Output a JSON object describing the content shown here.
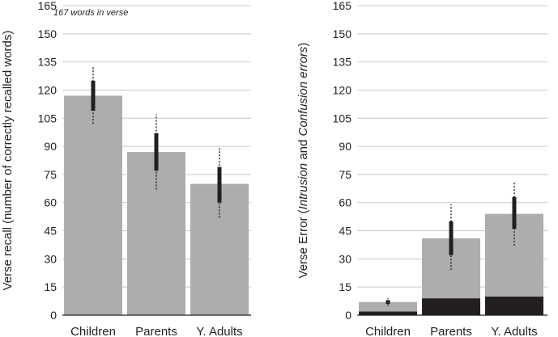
{
  "chart_data": [
    {
      "type": "bar",
      "title": "",
      "annotation": "167 words in verse",
      "ylabel": "Verse recall (number of correctly recalled words)",
      "xlabel": "",
      "categories": [
        "Children",
        "Parents",
        "Y. Adults"
      ],
      "ylim": [
        0,
        165
      ],
      "yticks": [
        "0",
        "15",
        "30",
        "45",
        "60",
        "75",
        "90",
        "105",
        "120",
        "135",
        "150",
        "165"
      ],
      "grid": true,
      "series": [
        {
          "name": "Correctly recalled words",
          "color": "#adadaf",
          "values": [
            117,
            87,
            70
          ]
        }
      ],
      "error_bars": {
        "style": "thick bar = SE, dotted line = SD",
        "se": [
          [
            109,
            125
          ],
          [
            77,
            97
          ],
          [
            60,
            79
          ]
        ],
        "sd": [
          [
            102,
            133
          ],
          [
            67,
            107
          ],
          [
            52,
            89
          ]
        ]
      }
    },
    {
      "type": "bar",
      "stacked": true,
      "title": "",
      "ylabel_parts": [
        {
          "text": "Verse Error (",
          "italic": false
        },
        {
          "text": "Intrusion",
          "italic": true
        },
        {
          "text": " and ",
          "italic": false
        },
        {
          "text": "Confusion errors",
          "italic": true
        },
        {
          "text": ")",
          "italic": false
        }
      ],
      "xlabel": "",
      "categories": [
        "Children",
        "Parents",
        "Y. Adults"
      ],
      "ylim": [
        0,
        165
      ],
      "yticks": [
        "0",
        "15",
        "30",
        "45",
        "60",
        "75",
        "90",
        "105",
        "120",
        "135",
        "150",
        "165"
      ],
      "grid": true,
      "series": [
        {
          "name": "Intrusion errors",
          "color": "#231f20",
          "values": [
            2,
            9,
            10
          ]
        },
        {
          "name": "Confusion errors",
          "color": "#adadaf",
          "values": [
            5,
            32,
            44
          ]
        }
      ],
      "totals": [
        7,
        41,
        54
      ],
      "error_bars": {
        "style": "thick bar = SE, dotted line = SD",
        "se": [
          [
            6,
            8
          ],
          [
            32,
            50
          ],
          [
            46,
            63
          ]
        ],
        "sd": [
          [
            5,
            9
          ],
          [
            24,
            59
          ],
          [
            37,
            71
          ]
        ]
      }
    }
  ]
}
